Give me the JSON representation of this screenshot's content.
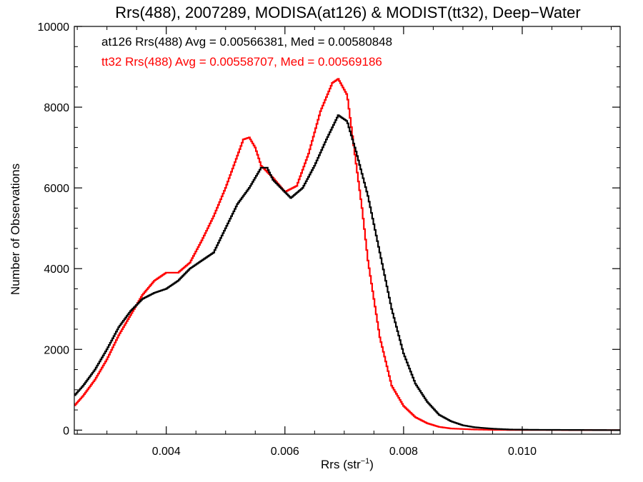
{
  "chart_data": {
    "type": "line",
    "title": "Rrs(488), 2007289, MODISA(at126) & MODIST(tt32), Deep−Water",
    "xlabel": "Rrs (str",
    "xlabel_sup": "−1",
    "xlabel_close": ")",
    "ylabel": "Number of Observations",
    "xlim": [
      0.00245,
      0.01165
    ],
    "ylim": [
      -100,
      10000
    ],
    "x_ticks": [
      {
        "value": 0.004,
        "label": "0.004"
      },
      {
        "value": 0.006,
        "label": "0.006"
      },
      {
        "value": 0.008,
        "label": "0.008"
      },
      {
        "value": 0.01,
        "label": "0.010"
      }
    ],
    "y_ticks": [
      {
        "value": 0,
        "label": "0"
      },
      {
        "value": 2000,
        "label": "2000"
      },
      {
        "value": 4000,
        "label": "4000"
      },
      {
        "value": 6000,
        "label": "6000"
      },
      {
        "value": 8000,
        "label": "8000"
      },
      {
        "value": 10000,
        "label": "10000"
      }
    ],
    "grid": false,
    "series": [
      {
        "name": "at126",
        "color": "#000000",
        "stats_label": "at126 Rrs(488) Avg = 0.00566381, Med = 0.00580848",
        "points": [
          [
            0.00245,
            850
          ],
          [
            0.0026,
            1100
          ],
          [
            0.0028,
            1500
          ],
          [
            0.003,
            2000
          ],
          [
            0.0032,
            2550
          ],
          [
            0.0034,
            2950
          ],
          [
            0.0036,
            3250
          ],
          [
            0.0038,
            3400
          ],
          [
            0.004,
            3500
          ],
          [
            0.0042,
            3700
          ],
          [
            0.0044,
            4000
          ],
          [
            0.0046,
            4200
          ],
          [
            0.0048,
            4400
          ],
          [
            0.005,
            5000
          ],
          [
            0.0052,
            5600
          ],
          [
            0.0054,
            6000
          ],
          [
            0.0056,
            6500
          ],
          [
            0.0057,
            6500
          ],
          [
            0.0058,
            6200
          ],
          [
            0.006,
            5900
          ],
          [
            0.0061,
            5750
          ],
          [
            0.0063,
            6000
          ],
          [
            0.0065,
            6550
          ],
          [
            0.0067,
            7200
          ],
          [
            0.0069,
            7800
          ],
          [
            0.00705,
            7650
          ],
          [
            0.0072,
            6900
          ],
          [
            0.0074,
            5800
          ],
          [
            0.0076,
            4400
          ],
          [
            0.0078,
            3000
          ],
          [
            0.008,
            1900
          ],
          [
            0.0082,
            1150
          ],
          [
            0.0084,
            700
          ],
          [
            0.0086,
            380
          ],
          [
            0.0088,
            220
          ],
          [
            0.009,
            120
          ],
          [
            0.0092,
            70
          ],
          [
            0.0095,
            35
          ],
          [
            0.0098,
            15
          ],
          [
            0.0102,
            8
          ],
          [
            0.0116,
            0
          ]
        ]
      },
      {
        "name": "tt32",
        "color": "#ff0000",
        "stats_label": "tt32 Rrs(488) Avg = 0.00558707, Med = 0.00569186",
        "points": [
          [
            0.00245,
            600
          ],
          [
            0.0026,
            850
          ],
          [
            0.0028,
            1250
          ],
          [
            0.003,
            1750
          ],
          [
            0.0032,
            2350
          ],
          [
            0.0034,
            2850
          ],
          [
            0.0036,
            3350
          ],
          [
            0.0038,
            3700
          ],
          [
            0.004,
            3900
          ],
          [
            0.0042,
            3900
          ],
          [
            0.0044,
            4150
          ],
          [
            0.0046,
            4700
          ],
          [
            0.0048,
            5300
          ],
          [
            0.005,
            6000
          ],
          [
            0.0052,
            6800
          ],
          [
            0.0053,
            7200
          ],
          [
            0.0054,
            7250
          ],
          [
            0.0055,
            7000
          ],
          [
            0.0056,
            6550
          ],
          [
            0.0058,
            6250
          ],
          [
            0.006,
            5900
          ],
          [
            0.0062,
            6050
          ],
          [
            0.0064,
            6850
          ],
          [
            0.0066,
            7900
          ],
          [
            0.0068,
            8600
          ],
          [
            0.0069,
            8700
          ],
          [
            0.00705,
            8300
          ],
          [
            0.0072,
            6600
          ],
          [
            0.0073,
            5500
          ],
          [
            0.0074,
            4200
          ],
          [
            0.0076,
            2300
          ],
          [
            0.0078,
            1100
          ],
          [
            0.008,
            600
          ],
          [
            0.0082,
            320
          ],
          [
            0.0084,
            170
          ],
          [
            0.0086,
            80
          ],
          [
            0.0088,
            40
          ],
          [
            0.0092,
            15
          ],
          [
            0.0096,
            5
          ],
          [
            0.0116,
            0
          ]
        ]
      }
    ]
  }
}
